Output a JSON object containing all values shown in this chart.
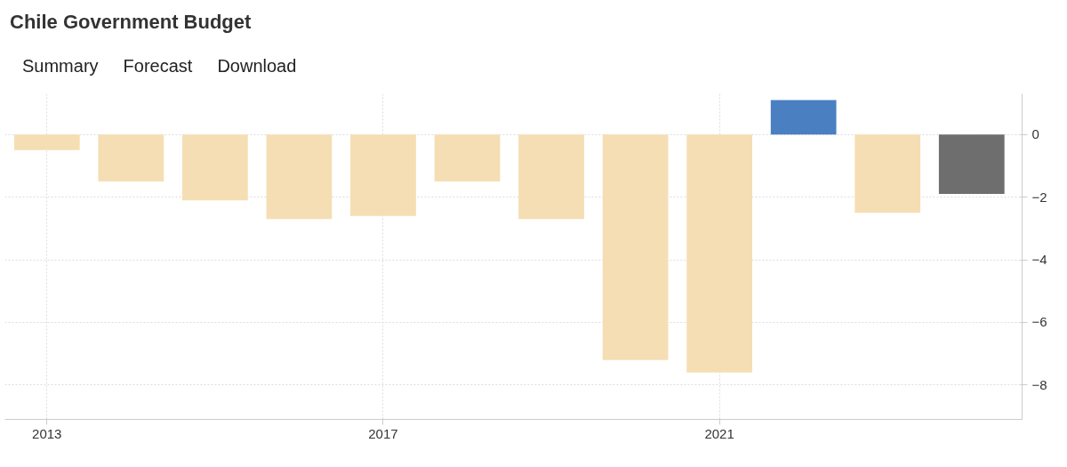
{
  "chart_data": {
    "type": "bar",
    "title": "Chile Government Budget",
    "annotations": [
      "Summary",
      "Forecast",
      "Download"
    ],
    "x": [
      2013,
      2014,
      2015,
      2016,
      2017,
      2018,
      2019,
      2020,
      2021,
      2022,
      2023,
      2024
    ],
    "values": [
      -0.5,
      -1.5,
      -2.1,
      -2.7,
      -2.6,
      -1.5,
      -2.7,
      -7.2,
      -7.6,
      1.1,
      -2.5,
      -1.9
    ],
    "colors": [
      "#f5deb3",
      "#f5deb3",
      "#f5deb3",
      "#f5deb3",
      "#f5deb3",
      "#f5deb3",
      "#f5deb3",
      "#f5deb3",
      "#f5deb3",
      "#4a80c2",
      "#f5deb3",
      "#6e6e6e"
    ],
    "xlim": [
      2012.5,
      2024.6
    ],
    "xticks": [
      2013,
      2017,
      2021
    ],
    "ylim": [
      -9.1,
      1.3
    ],
    "yticks": [
      0,
      -2,
      -4,
      -6,
      -8
    ],
    "grid": true
  }
}
